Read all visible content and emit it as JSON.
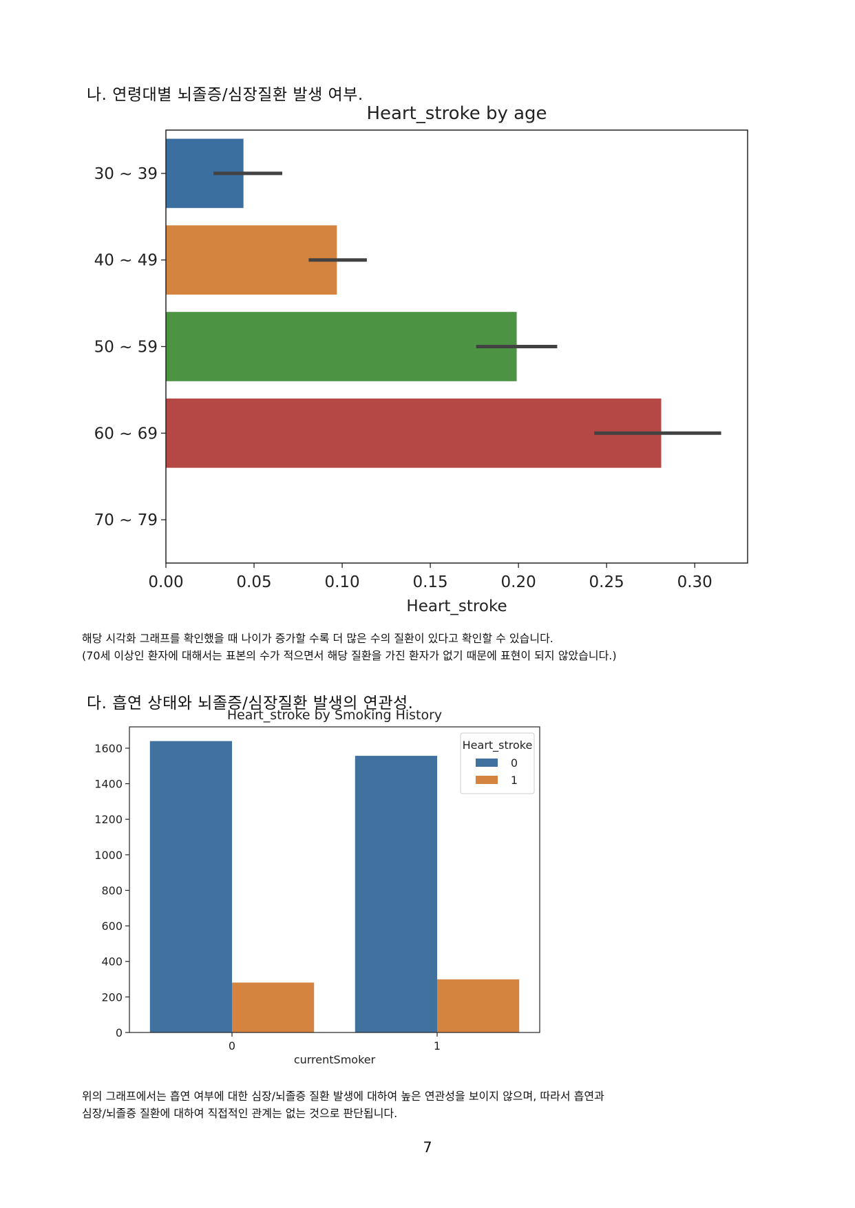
{
  "section_b": {
    "heading": "나. 연령대별 뇌졸증/심장질환 발생 여부.",
    "note1": "해당 시각화 그래프를 확인했을 때 나이가 증가할 수록 더 많은 수의 질환이 있다고 확인할 수 있습니다.",
    "note2": "(70세 이상인 환자에 대해서는 표본의 수가 적으면서 해당 질환을 가진 환자가 없기 때문에 표현이 되지 않았습니다.)"
  },
  "section_c": {
    "heading": "다. 흡연 상태와 뇌졸증/심장질환 발생의 연관성.",
    "note1": "위의 그래프에서는 흡연 여부에 대한 심장/뇌졸증 질환 발생에 대하여 높은 연관성을  보이지 않으며, 따라서 흡연과",
    "note2": "심장/뇌졸증 질환에 대하여 직접적인 관계는 없는 것으로 판단됩니다."
  },
  "page_number": "7",
  "chart_data": [
    {
      "type": "bar",
      "orientation": "horizontal",
      "title": "Heart_stroke by age",
      "xlabel": "Heart_stroke",
      "ylabel": "",
      "categories": [
        "30 ~ 39",
        "40 ~ 49",
        "50 ~ 59",
        "60 ~ 69",
        "70 ~ 79"
      ],
      "values": [
        0.044,
        0.097,
        0.199,
        0.281,
        0.0
      ],
      "error_low": [
        0.027,
        0.081,
        0.176,
        0.243,
        null
      ],
      "error_high": [
        0.066,
        0.114,
        0.222,
        0.315,
        null
      ],
      "colors": [
        "#3b6fa0",
        "#d5843f",
        "#4c9343",
        "#b54744",
        "#8f6bb5"
      ],
      "xlim": [
        0,
        0.33
      ],
      "xticks": [
        "0.00",
        "0.05",
        "0.10",
        "0.15",
        "0.20",
        "0.25",
        "0.30"
      ],
      "grid": false
    },
    {
      "type": "bar",
      "orientation": "vertical",
      "title": "Heart_stroke by Smoking History",
      "xlabel": "currentSmoker",
      "ylabel": "",
      "categories": [
        "0",
        "1"
      ],
      "series": [
        {
          "name": "0",
          "values": [
            1640,
            1557
          ],
          "color": "#41729f"
        },
        {
          "name": "1",
          "values": [
            281,
            299
          ],
          "color": "#d5843f"
        }
      ],
      "ylim": [
        0,
        1720
      ],
      "yticks": [
        "0",
        "200",
        "400",
        "600",
        "800",
        "1000",
        "1200",
        "1400",
        "1600"
      ],
      "legend_title": "Heart_stroke",
      "legend_position": "top-right",
      "grid": false
    }
  ]
}
